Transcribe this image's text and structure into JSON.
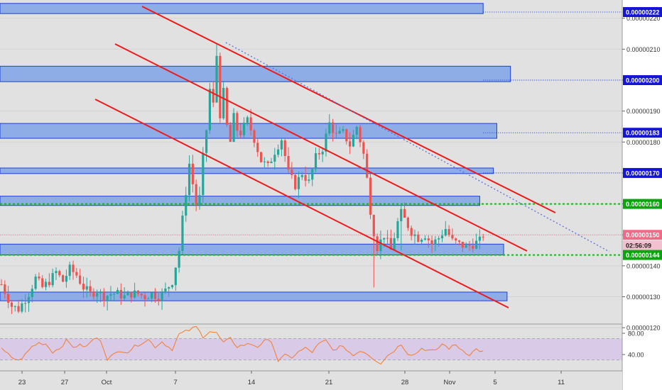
{
  "colors": {
    "background": "#e1e1e1",
    "axis_background": "#ffffff",
    "zone_fill": "#7fa3e8",
    "zone_stroke": "#1c3fd9",
    "channel": "#ef1b1b",
    "candle_up": "#26a69a",
    "candle_down": "#ef5350",
    "rsi": "#f57c2a",
    "rsi_band": "#d8c8e8",
    "support_green": "#13b613",
    "tag_blue": "#1515d6",
    "tag_green": "#0aa50a",
    "tag_pink": "#ef6a87",
    "tag_timer": "#f3c0cf"
  },
  "chart_data": [
    {
      "type": "candlestick",
      "title": "",
      "xlabel": "",
      "ylabel": "",
      "ylim": [
        1.195e-06,
        2.245e-06
      ],
      "x_ticks": [
        "23",
        "27",
        "Oct",
        "7",
        "14",
        "21",
        "28",
        "Nov",
        "5",
        "11"
      ],
      "y_ticks": [
        "0.00000120",
        "0.00000130",
        "0.00000140",
        "0.00000150",
        "0.00000160",
        "0.00000170",
        "0.00000180",
        "0.00000190",
        "0.00000200",
        "0.00000210",
        "0.00000220"
      ],
      "grid": true,
      "anchors": [
        [
          0,
          1.34
        ],
        [
          3,
          1.27
        ],
        [
          5,
          1.26
        ],
        [
          8,
          1.31
        ],
        [
          10,
          1.36
        ],
        [
          12,
          1.33
        ],
        [
          14,
          1.35
        ],
        [
          16,
          1.38
        ],
        [
          18,
          1.35
        ],
        [
          20,
          1.39
        ],
        [
          22,
          1.37
        ],
        [
          24,
          1.33
        ],
        [
          26,
          1.31
        ],
        [
          28,
          1.32
        ],
        [
          30,
          1.3
        ],
        [
          32,
          1.31
        ],
        [
          34,
          1.31
        ],
        [
          36,
          1.3
        ],
        [
          38,
          1.31
        ],
        [
          40,
          1.31
        ],
        [
          42,
          1.3
        ],
        [
          44,
          1.31
        ],
        [
          46,
          1.3
        ],
        [
          48,
          1.32
        ],
        [
          50,
          1.35
        ],
        [
          52,
          1.45
        ],
        [
          53,
          1.55
        ],
        [
          55,
          1.73
        ],
        [
          57,
          1.6
        ],
        [
          58,
          1.62
        ],
        [
          59,
          1.75
        ],
        [
          60,
          1.84
        ],
        [
          61,
          1.97
        ],
        [
          62,
          1.92
        ],
        [
          63,
          2.08
        ],
        [
          64,
          1.89
        ],
        [
          65,
          1.96
        ],
        [
          66,
          1.85
        ],
        [
          67,
          1.8
        ],
        [
          68,
          1.88
        ],
        [
          69,
          1.84
        ],
        [
          70,
          1.83
        ],
        [
          72,
          1.87
        ],
        [
          74,
          1.81
        ],
        [
          76,
          1.74
        ],
        [
          78,
          1.72
        ],
        [
          80,
          1.77
        ],
        [
          82,
          1.81
        ],
        [
          84,
          1.7
        ],
        [
          86,
          1.66
        ],
        [
          88,
          1.7
        ],
        [
          90,
          1.67
        ],
        [
          92,
          1.75
        ],
        [
          94,
          1.78
        ],
        [
          96,
          1.86
        ],
        [
          98,
          1.82
        ],
        [
          100,
          1.83
        ],
        [
          102,
          1.79
        ],
        [
          104,
          1.85
        ],
        [
          106,
          1.76
        ],
        [
          107,
          1.68
        ],
        [
          108,
          1.58
        ],
        [
          109,
          1.51
        ],
        [
          110,
          1.46
        ],
        [
          112,
          1.5
        ],
        [
          114,
          1.45
        ],
        [
          116,
          1.54
        ],
        [
          117,
          1.57
        ],
        [
          118,
          1.55
        ],
        [
          120,
          1.51
        ],
        [
          122,
          1.49
        ],
        [
          124,
          1.5
        ],
        [
          126,
          1.47
        ],
        [
          128,
          1.49
        ],
        [
          130,
          1.52
        ],
        [
          132,
          1.48
        ],
        [
          134,
          1.47
        ],
        [
          136,
          1.46
        ],
        [
          138,
          1.47
        ],
        [
          140,
          1.48
        ],
        [
          141,
          1.5
        ]
      ],
      "wicks": {
        "63": [
          1.99,
          2.12
        ],
        "109": [
          1.33,
          1.53
        ],
        "96": [
          1.82,
          1.89
        ],
        "117": [
          1.45,
          1.6
        ]
      }
    },
    {
      "type": "line",
      "title": "",
      "xlabel": "",
      "ylabel": "",
      "ylim": [
        15,
        95
      ],
      "y_ticks": [
        "40.00",
        "80.00"
      ],
      "band": [
        30,
        70
      ],
      "rsi": [
        [
          0,
          50
        ],
        [
          3,
          35
        ],
        [
          5,
          28
        ],
        [
          7,
          40
        ],
        [
          9,
          55
        ],
        [
          11,
          62
        ],
        [
          13,
          60
        ],
        [
          15,
          45
        ],
        [
          17,
          52
        ],
        [
          19,
          66
        ],
        [
          21,
          55
        ],
        [
          23,
          57
        ],
        [
          25,
          55
        ],
        [
          27,
          70
        ],
        [
          29,
          68
        ],
        [
          31,
          32
        ],
        [
          33,
          40
        ],
        [
          35,
          48
        ],
        [
          37,
          45
        ],
        [
          39,
          55
        ],
        [
          41,
          62
        ],
        [
          43,
          68
        ],
        [
          45,
          55
        ],
        [
          47,
          64
        ],
        [
          49,
          54
        ],
        [
          50,
          50
        ],
        [
          52,
          78
        ],
        [
          55,
          86
        ],
        [
          57,
          92
        ],
        [
          59,
          74
        ],
        [
          61,
          84
        ],
        [
          63,
          80
        ],
        [
          65,
          62
        ],
        [
          67,
          70
        ],
        [
          69,
          55
        ],
        [
          71,
          58
        ],
        [
          73,
          60
        ],
        [
          75,
          55
        ],
        [
          77,
          65
        ],
        [
          79,
          66
        ],
        [
          81,
          28
        ],
        [
          83,
          38
        ],
        [
          85,
          35
        ],
        [
          87,
          45
        ],
        [
          89,
          52
        ],
        [
          91,
          45
        ],
        [
          93,
          60
        ],
        [
          95,
          66
        ],
        [
          97,
          48
        ],
        [
          99,
          55
        ],
        [
          101,
          50
        ],
        [
          103,
          38
        ],
        [
          105,
          48
        ],
        [
          107,
          42
        ],
        [
          109,
          32
        ],
        [
          111,
          24
        ],
        [
          113,
          38
        ],
        [
          115,
          48
        ],
        [
          117,
          60
        ],
        [
          119,
          42
        ],
        [
          121,
          40
        ],
        [
          123,
          52
        ],
        [
          125,
          48
        ],
        [
          127,
          46
        ],
        [
          129,
          60
        ],
        [
          131,
          52
        ],
        [
          133,
          58
        ],
        [
          135,
          48
        ],
        [
          137,
          40
        ],
        [
          139,
          50
        ],
        [
          141,
          45
        ]
      ]
    }
  ],
  "zones": [
    {
      "top": 2.248,
      "bottom": 2.215,
      "right": 141
    },
    {
      "top": 2.045,
      "bottom": 1.995,
      "right": 149
    },
    {
      "top": 1.86,
      "bottom": 1.812,
      "right": 145
    },
    {
      "top": 1.716,
      "bottom": 1.698,
      "right": 144
    },
    {
      "top": 1.625,
      "bottom": 1.595,
      "right": 140
    },
    {
      "top": 1.47,
      "bottom": 1.435,
      "right": 147
    },
    {
      "top": 1.315,
      "bottom": 1.287,
      "right": 148
    }
  ],
  "price_tags": [
    {
      "label": "0.00000222",
      "value": 2.22,
      "style": "blue"
    },
    {
      "label": "0.00000200",
      "value": 2.0,
      "style": "blue"
    },
    {
      "label": "0.00000183",
      "value": 1.83,
      "style": "blue"
    },
    {
      "label": "0.00000170",
      "value": 1.7,
      "style": "blue"
    },
    {
      "label": "0.00000160",
      "value": 1.6,
      "style": "green"
    },
    {
      "label": "0.00000150",
      "value": 1.5,
      "style": "pink"
    },
    {
      "label": "02:56:09",
      "value": 1.466,
      "style": "timer"
    },
    {
      "label": "0.00000144",
      "value": 1.435,
      "style": "green"
    }
  ]
}
